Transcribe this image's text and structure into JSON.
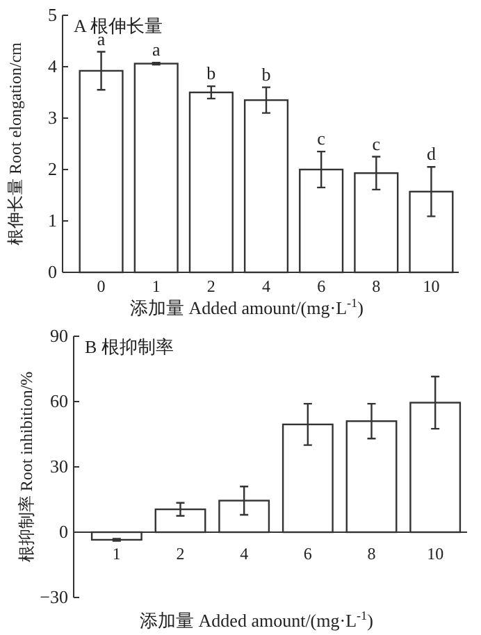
{
  "chart_data": [
    {
      "type": "bar",
      "title": "A 根伸长量",
      "xlabel": "添加量 Added amount/(mg·L$^{-1}$)",
      "ylabel": "根伸长量 Root elongation/cm",
      "categories": [
        "0",
        "1",
        "2",
        "4",
        "6",
        "8",
        "10"
      ],
      "values": [
        3.92,
        4.06,
        3.5,
        3.35,
        2.0,
        1.93,
        1.57
      ],
      "errors": [
        0.37,
        0.02,
        0.12,
        0.25,
        0.35,
        0.32,
        0.48
      ],
      "color": "#ffffff",
      "ylim": [
        0,
        5
      ],
      "yticks": [
        0,
        1,
        2,
        3,
        4,
        5
      ],
      "annotations": [
        {
          "text": "a",
          "x": "0",
          "y": 4.29
        },
        {
          "text": "a",
          "x": "1",
          "y": 4.08
        },
        {
          "text": "b",
          "x": "2",
          "y": 3.62
        },
        {
          "text": "b",
          "x": "4",
          "y": 3.6
        },
        {
          "text": "c",
          "x": "6",
          "y": 2.35
        },
        {
          "text": "c",
          "x": "8",
          "y": 2.25
        },
        {
          "text": "d",
          "x": "10",
          "y": 2.05
        }
      ]
    },
    {
      "type": "bar",
      "title": "B 根抑制率",
      "xlabel": "添加量 Added amount/(mg·L$^{-1}$)",
      "ylabel": "根抑制率 Root inhibition/%",
      "categories": [
        "1",
        "2",
        "4",
        "6",
        "8",
        "10"
      ],
      "values": [
        -3.5,
        10.5,
        14.5,
        49.5,
        51,
        59.5
      ],
      "errors": [
        0.5,
        3,
        6.5,
        9.5,
        8,
        12
      ],
      "color": "#ffffff",
      "ylim": [
        -30,
        90
      ],
      "yticks": [
        -30,
        0,
        30,
        60,
        90
      ]
    }
  ]
}
